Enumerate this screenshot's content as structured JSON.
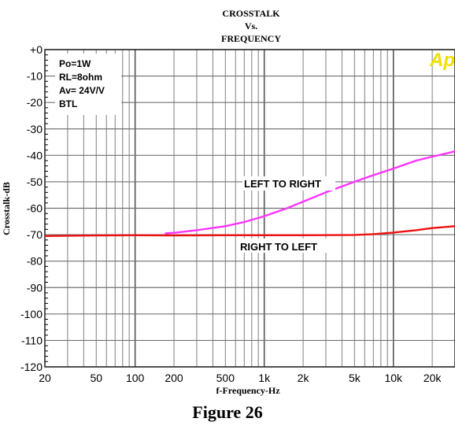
{
  "chart_data": {
    "type": "line",
    "title_lines": [
      "CROSSTALK",
      "Vs.",
      "FREQUENCY"
    ],
    "xlabel": "f-Frequency-Hz",
    "ylabel": "Crosstalk-dB",
    "xscale": "log",
    "xlim": [
      20,
      30000
    ],
    "ylim": [
      -120,
      0
    ],
    "grid": true,
    "x_tick_labels": [
      "20",
      "50",
      "100",
      "200",
      "500",
      "1k",
      "2k",
      "5k",
      "10k",
      "20k"
    ],
    "x_tick_values": [
      20,
      50,
      100,
      200,
      500,
      1000,
      2000,
      5000,
      10000,
      20000
    ],
    "y_tick_labels": [
      "+0",
      "-10",
      "-20",
      "-30",
      "-40",
      "-50",
      "-60",
      "-70",
      "-80",
      "-90",
      "-100",
      "-110",
      "-120"
    ],
    "y_tick_values": [
      0,
      -10,
      -20,
      -30,
      -40,
      -50,
      -60,
      -70,
      -80,
      -90,
      -100,
      -110,
      -120
    ],
    "conditions": [
      "Po=1W",
      "RL=8ohm",
      "Av= 24V/V",
      "BTL"
    ],
    "logo": "Ap",
    "series": [
      {
        "name": "LEFT TO RIGHT",
        "color": "#ff33ff",
        "x": [
          170,
          200,
          300,
          500,
          700,
          1000,
          1500,
          2000,
          3000,
          5000,
          7000,
          10000,
          15000,
          20000,
          30000
        ],
        "y": [
          -69.5,
          -69.3,
          -68.3,
          -66.8,
          -65.2,
          -63,
          -60,
          -57.5,
          -54,
          -50,
          -47.5,
          -45,
          -42,
          -40.5,
          -38.5
        ]
      },
      {
        "name": "RIGHT TO LEFT",
        "color": "#ee1111",
        "x": [
          20,
          50,
          100,
          200,
          500,
          1000,
          2000,
          5000,
          7000,
          10000,
          15000,
          20000,
          30000
        ],
        "y": [
          -70.5,
          -70.3,
          -70.2,
          -70.3,
          -70.2,
          -70.2,
          -70.2,
          -70.1,
          -69.8,
          -69.2,
          -68.3,
          -67.5,
          -66.8
        ]
      }
    ]
  },
  "caption": "Figure 26"
}
